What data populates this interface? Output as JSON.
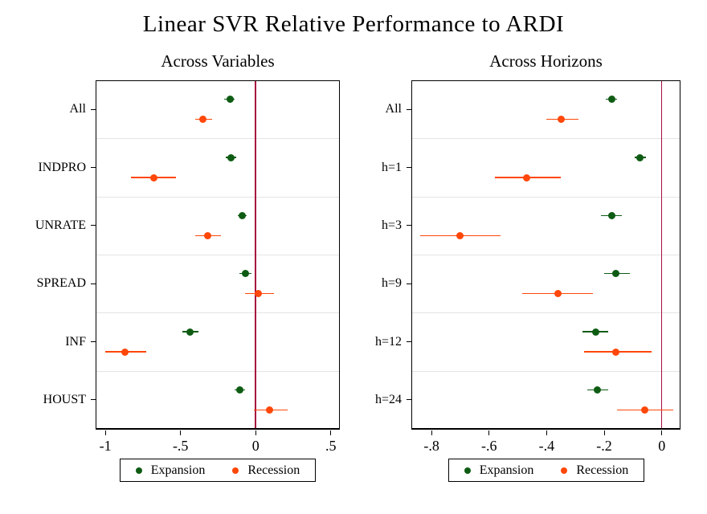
{
  "title": "Linear SVR Relative Performance to ARDI",
  "colors": {
    "expansion": "#0e5c13",
    "recession": "#ff4709",
    "reference_line": "#a60f3f",
    "band_grid": "#e4e4e4",
    "axis": "#000000"
  },
  "legend": {
    "expansion_label": "Expansion",
    "recession_label": "Recession"
  },
  "chart_data": [
    {
      "type": "scatter",
      "title": "Across Variables",
      "orientation": "horizontal dot plot with CI bars",
      "categories": [
        "All",
        "INDPRO",
        "UNRATE",
        "SPREAD",
        "INF",
        "HOUST"
      ],
      "xlim": [
        -1.065,
        0.56
      ],
      "xticks": [
        -1,
        -0.5,
        0,
        0.5
      ],
      "xtick_labels": [
        "-1",
        "-.5",
        "0",
        ".5"
      ],
      "refline_x": 0,
      "grid": "light horizontal band separators",
      "legend_position": "bottom",
      "series": [
        {
          "name": "Expansion",
          "color_key": "expansion",
          "points": [
            {
              "category": "All",
              "value": -0.17,
              "lo": -0.21,
              "hi": -0.14
            },
            {
              "category": "INDPRO",
              "value": -0.165,
              "lo": -0.2,
              "hi": -0.13
            },
            {
              "category": "UNRATE",
              "value": -0.09,
              "lo": -0.12,
              "hi": -0.06
            },
            {
              "category": "SPREAD",
              "value": -0.07,
              "lo": -0.11,
              "hi": -0.03
            },
            {
              "category": "INF",
              "value": -0.435,
              "lo": -0.49,
              "hi": -0.38
            },
            {
              "category": "HOUST",
              "value": -0.105,
              "lo": -0.14,
              "hi": -0.07
            }
          ]
        },
        {
          "name": "Recession",
          "color_key": "recession",
          "points": [
            {
              "category": "All",
              "value": -0.35,
              "lo": -0.4,
              "hi": -0.29
            },
            {
              "category": "INDPRO",
              "value": -0.68,
              "lo": -0.83,
              "hi": -0.53
            },
            {
              "category": "UNRATE",
              "value": -0.32,
              "lo": -0.4,
              "hi": -0.23
            },
            {
              "category": "SPREAD",
              "value": 0.02,
              "lo": -0.07,
              "hi": 0.12
            },
            {
              "category": "INF",
              "value": -0.87,
              "lo": -1.0,
              "hi": -0.73
            },
            {
              "category": "HOUST",
              "value": 0.09,
              "lo": -0.01,
              "hi": 0.21
            }
          ]
        }
      ]
    },
    {
      "type": "scatter",
      "title": "Across Horizons",
      "orientation": "horizontal dot plot with CI bars",
      "categories": [
        "All",
        "h=1",
        "h=3",
        "h=9",
        "h=12",
        "h=24"
      ],
      "xlim": [
        -0.87,
        0.065
      ],
      "xticks": [
        -0.8,
        -0.6,
        -0.4,
        -0.2,
        0
      ],
      "xtick_labels": [
        "-.8",
        "-.6",
        "-.4",
        "-.2",
        "0"
      ],
      "refline_x": 0,
      "grid": "light horizontal band separators",
      "legend_position": "bottom",
      "series": [
        {
          "name": "Expansion",
          "color_key": "expansion",
          "points": [
            {
              "category": "All",
              "value": -0.175,
              "lo": -0.195,
              "hi": -0.155
            },
            {
              "category": "h=1",
              "value": -0.075,
              "lo": -0.095,
              "hi": -0.055
            },
            {
              "category": "h=3",
              "value": -0.175,
              "lo": -0.21,
              "hi": -0.14
            },
            {
              "category": "h=9",
              "value": -0.16,
              "lo": -0.2,
              "hi": -0.11
            },
            {
              "category": "h=12",
              "value": -0.23,
              "lo": -0.275,
              "hi": -0.185
            },
            {
              "category": "h=24",
              "value": -0.225,
              "lo": -0.26,
              "hi": -0.185
            }
          ]
        },
        {
          "name": "Recession",
          "color_key": "recession",
          "points": [
            {
              "category": "All",
              "value": -0.35,
              "lo": -0.4,
              "hi": -0.29
            },
            {
              "category": "h=1",
              "value": -0.47,
              "lo": -0.58,
              "hi": -0.35
            },
            {
              "category": "h=3",
              "value": -0.7,
              "lo": -0.84,
              "hi": -0.56
            },
            {
              "category": "h=9",
              "value": -0.36,
              "lo": -0.485,
              "hi": -0.24
            },
            {
              "category": "h=12",
              "value": -0.16,
              "lo": -0.27,
              "hi": -0.035
            },
            {
              "category": "h=24",
              "value": -0.06,
              "lo": -0.155,
              "hi": 0.04
            }
          ]
        }
      ]
    }
  ]
}
